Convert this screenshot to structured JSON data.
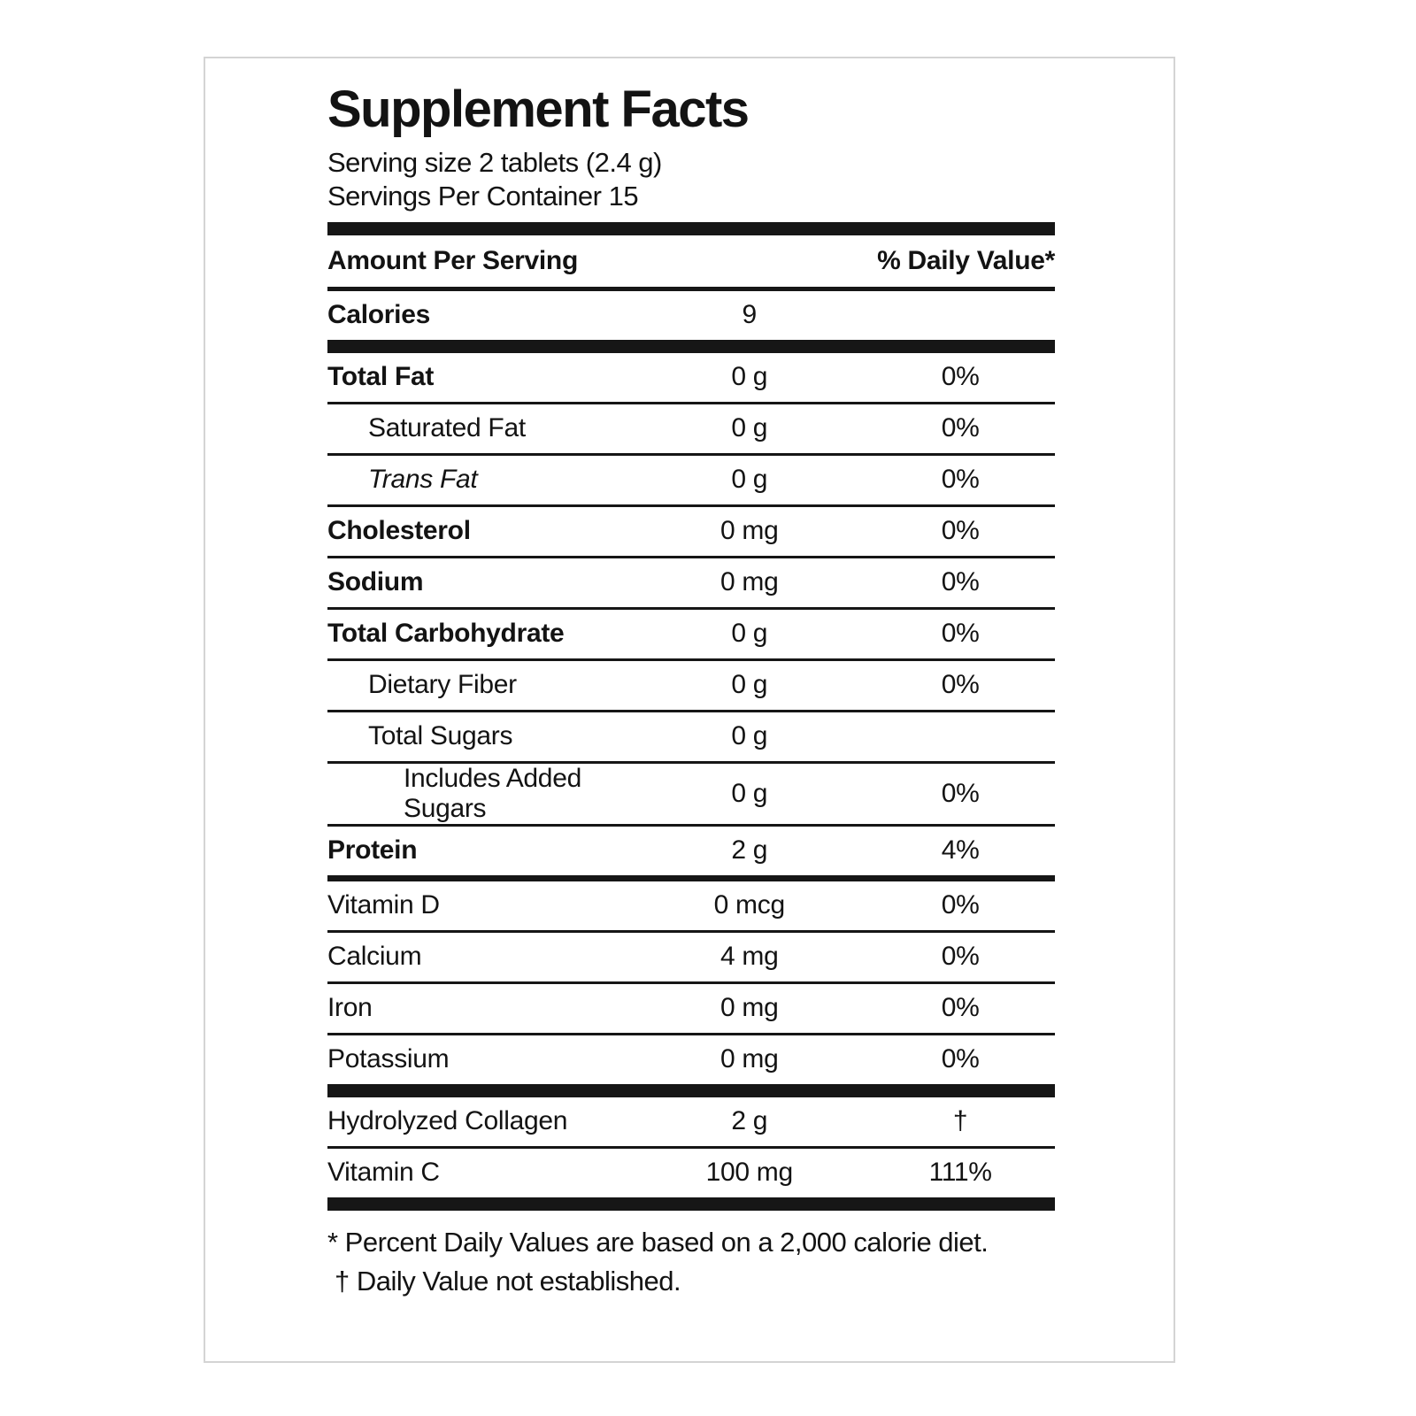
{
  "label": {
    "title": "Supplement Facts",
    "serving_size": "Serving size 2 tablets (2.4 g)",
    "servings_per_container": "Servings Per Container 15",
    "header": {
      "amount_per_serving": "Amount Per Serving",
      "daily_value": "% Daily Value*"
    },
    "calories": {
      "name": "Calories",
      "value": "9"
    },
    "rows": [
      {
        "name": "Total Fat",
        "amount": "0 g",
        "dv": "0%",
        "bold": true,
        "indent": 0
      },
      {
        "name": "Saturated Fat",
        "amount": "0 g",
        "dv": "0%",
        "bold": false,
        "indent": 1
      },
      {
        "name": "Trans Fat",
        "amount": "0 g",
        "dv": "0%",
        "bold": false,
        "indent": 1,
        "italic": true
      },
      {
        "name": "Cholesterol",
        "amount": "0 mg",
        "dv": "0%",
        "bold": true,
        "indent": 0
      },
      {
        "name": "Sodium",
        "amount": "0 mg",
        "dv": "0%",
        "bold": true,
        "indent": 0
      },
      {
        "name": "Total Carbohydrate",
        "amount": "0 g",
        "dv": "0%",
        "bold": true,
        "indent": 0
      },
      {
        "name": "Dietary Fiber",
        "amount": "0 g",
        "dv": "0%",
        "bold": false,
        "indent": 1
      },
      {
        "name": "Total Sugars",
        "amount": "0 g",
        "dv": "",
        "bold": false,
        "indent": 1
      },
      {
        "name": "Includes Added Sugars",
        "amount": "0 g",
        "dv": "0%",
        "bold": false,
        "indent": 2
      },
      {
        "name": "Protein",
        "amount": "2 g",
        "dv": "4%",
        "bold": true,
        "indent": 0,
        "sep_after": "med"
      },
      {
        "name": "Vitamin D",
        "amount": "0 mcg",
        "dv": "0%",
        "bold": false,
        "indent": 0
      },
      {
        "name": "Calcium",
        "amount": "4 mg",
        "dv": "0%",
        "bold": false,
        "indent": 0
      },
      {
        "name": "Iron",
        "amount": "0 mg",
        "dv": "0%",
        "bold": false,
        "indent": 0
      },
      {
        "name": "Potassium",
        "amount": "0 mg",
        "dv": "0%",
        "bold": false,
        "indent": 0,
        "sep_after": "thick"
      },
      {
        "name": "Hydrolyzed Collagen",
        "amount": "2 g",
        "dv": "†",
        "bold": false,
        "indent": 0
      },
      {
        "name": "Vitamin C",
        "amount": "100 mg",
        "dv": "111%",
        "bold": false,
        "indent": 0,
        "sep_after": "thick"
      }
    ],
    "footnotes": [
      "* Percent Daily Values are based on a 2,000 calorie diet.",
      "† Daily Value not established."
    ]
  }
}
